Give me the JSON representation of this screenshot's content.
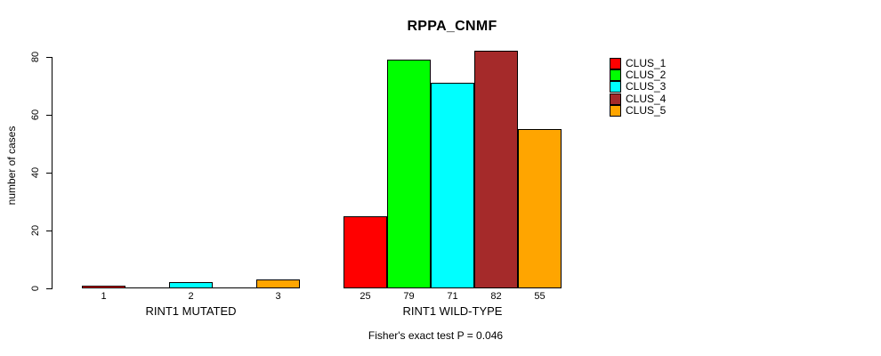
{
  "page": {
    "background": "#ffffff"
  },
  "chart_data": {
    "type": "bar",
    "title": "RPPA_CNMF",
    "ylabel": "number of cases",
    "xlabel": "",
    "ylim": [
      0,
      80
    ],
    "yticks": [
      0,
      20,
      40,
      60,
      80
    ],
    "grid": false,
    "legend_position": "right",
    "series_names": [
      "CLUS_1",
      "CLUS_2",
      "CLUS_3",
      "CLUS_4",
      "CLUS_5"
    ],
    "series_colors": [
      "#ff0000",
      "#00ff00",
      "#00ffff",
      "#a52a2a",
      "#ffa500"
    ],
    "axis_color": "#000000",
    "groups": [
      {
        "label": "RINT1 MUTATED",
        "values": [
          1,
          0,
          2,
          0,
          3
        ],
        "bar_labels": [
          "1",
          "",
          "2",
          "",
          "3"
        ]
      },
      {
        "label": "RINT1 WILD-TYPE",
        "values": [
          25,
          79,
          71,
          82,
          55
        ],
        "bar_labels": [
          "25",
          "79",
          "71",
          "82",
          "55"
        ]
      }
    ]
  },
  "footnote": "Fisher's exact test P = 0.046"
}
